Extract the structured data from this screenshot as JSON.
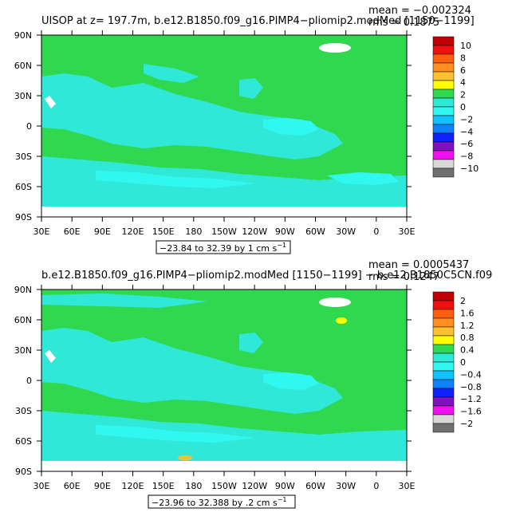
{
  "panels": [
    {
      "title": "UISOP at z= 197.7m, b.e12.B1850.f09_g16.PIMP4−pliomip2.modMed [1150−1199]",
      "mean_text": "mean = −0.002324",
      "rms_text": "rms = 0.1875",
      "range_text": "−23.84 to 32.39 by 1 cm s",
      "range_sup": "−1",
      "colorbar_labels": [
        "10",
        "8",
        "6",
        "4",
        "2",
        "0",
        "−2",
        "−4",
        "−6",
        "−8",
        "−10"
      ]
    },
    {
      "title": "b.e12.B1850.f09_g16.PIMP4−pliomip2.modMed [1150−1199] − b.e12.B1850C5CN.f09",
      "mean_text": "mean = 0.0005437",
      "rms_text": "rms = 0.1247",
      "range_text": "−23.96 to 32.388 by .2 cm s",
      "range_sup": "−1",
      "colorbar_labels": [
        "2",
        "1.6",
        "1.2",
        "0.8",
        "0.4",
        "0",
        "−0.4",
        "−0.8",
        "−1.2",
        "−1.6",
        "−2"
      ]
    }
  ],
  "x_ticks": [
    "30E",
    "60E",
    "90E",
    "120E",
    "150E",
    "180",
    "150W",
    "120W",
    "90W",
    "60W",
    "30W",
    "0",
    "30E"
  ],
  "y_ticks": [
    "90N",
    "60N",
    "30N",
    "0",
    "30S",
    "60S",
    "90S"
  ],
  "colors": {
    "land_green": "#30d850",
    "ocean_cyan": "#30e8d8",
    "light_cyan": "#30f8f0",
    "missing": "#ffffff",
    "colorbar": [
      "#c00000",
      "#f01010",
      "#ff6010",
      "#ff9020",
      "#ffc030",
      "#ffff00",
      "#30d850",
      "#30e8d8",
      "#30f8f0",
      "#10c0ff",
      "#1080ff",
      "#1020ff",
      "#8010c0",
      "#f010f0",
      "#d8d8d8",
      "#707070"
    ]
  }
}
